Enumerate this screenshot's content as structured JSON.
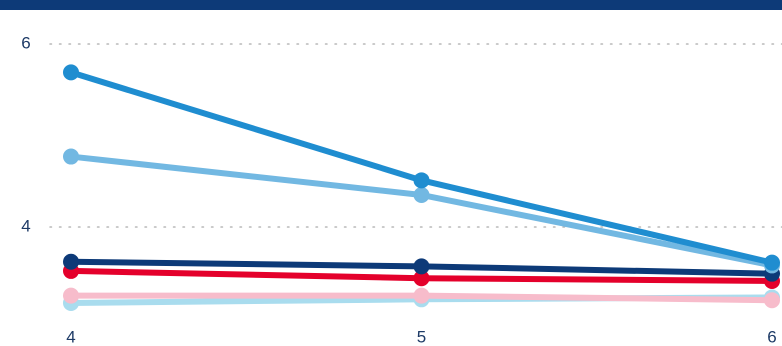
{
  "chart_data": {
    "type": "line",
    "x": [
      4,
      5,
      6
    ],
    "xlim": [
      4,
      6
    ],
    "xticks": [
      4,
      5,
      6
    ],
    "ylim": [
      3,
      6
    ],
    "yticks": [
      4,
      6
    ],
    "grid": true,
    "series": [
      {
        "color": "#a9dcee",
        "values": [
          3.17,
          3.21,
          3.23
        ]
      },
      {
        "color": "#f7bccb",
        "values": [
          3.25,
          3.25,
          3.2
        ]
      },
      {
        "color": "#e4002b",
        "values": [
          3.52,
          3.44,
          3.41
        ]
      },
      {
        "color": "#0d3a78",
        "values": [
          3.62,
          3.57,
          3.49
        ]
      },
      {
        "color": "#72b8e2",
        "values": [
          4.77,
          4.35,
          3.58
        ]
      },
      {
        "color": "#1f8dd0",
        "values": [
          5.69,
          4.51,
          3.61
        ]
      }
    ]
  }
}
